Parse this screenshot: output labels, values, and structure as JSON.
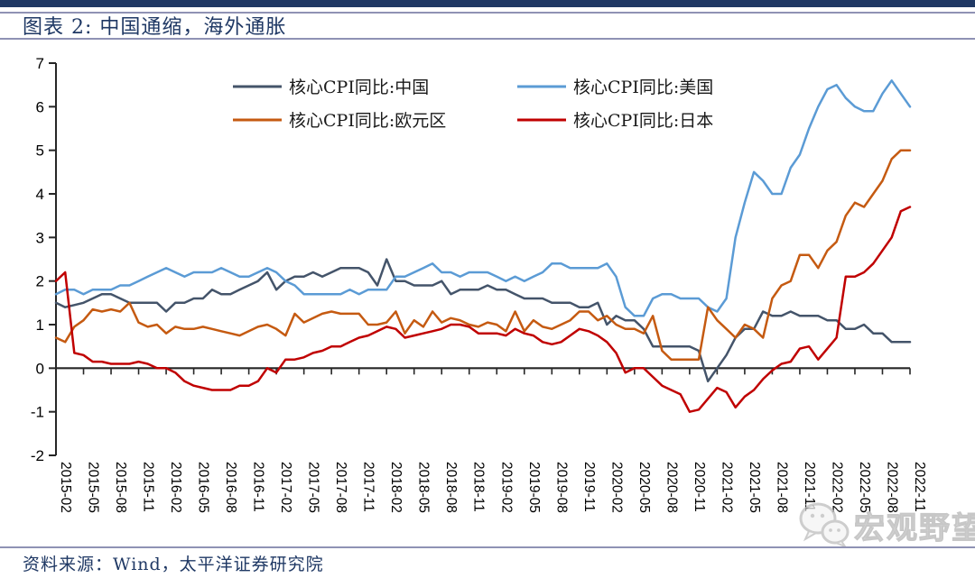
{
  "header": {
    "title": "图表 2:  中国通缩，海外通胀"
  },
  "footer": {
    "source": "资料来源：Wind，太平洋证券研究院"
  },
  "watermark": {
    "text": "宏观野望",
    "icon": "wechat-logo-icon"
  },
  "colors": {
    "accent_bar": "#203864",
    "rule_line": "#8f92b4",
    "axis": "#262626",
    "title_text": "#1F3864"
  },
  "chart_data": {
    "type": "line",
    "title": "中国通缩，海外通胀",
    "frequency": "monthly",
    "x_start": "2015-02",
    "x_end": "2022-11",
    "ylim": [
      -2,
      7
    ],
    "y_ticks": [
      7,
      6,
      5,
      4,
      3,
      2,
      1,
      0,
      -1,
      -2
    ],
    "grid": false,
    "legend_position": "top-inside-two-columns",
    "x_tick_labels": [
      "2015-02",
      "2015-05",
      "2015-08",
      "2015-11",
      "2016-02",
      "2016-05",
      "2016-08",
      "2016-11",
      "2017-02",
      "2017-05",
      "2017-08",
      "2017-11",
      "2018-02",
      "2018-05",
      "2018-08",
      "2018-11",
      "2019-02",
      "2019-05",
      "2019-08",
      "2019-11",
      "2020-02",
      "2020-05",
      "2020-08",
      "2020-11",
      "2021-02",
      "2021-05",
      "2021-08",
      "2021-11",
      "2022-02",
      "2022-05",
      "2022-08",
      "2022-11"
    ],
    "series": [
      {
        "key": "china",
        "name": "核心CPI同比:中国",
        "color": "#44546A",
        "values": [
          1.5,
          1.4,
          1.45,
          1.5,
          1.6,
          1.7,
          1.7,
          1.6,
          1.5,
          1.5,
          1.5,
          1.5,
          1.3,
          1.5,
          1.5,
          1.6,
          1.6,
          1.8,
          1.7,
          1.7,
          1.8,
          1.9,
          2.0,
          2.2,
          1.8,
          2.0,
          2.1,
          2.1,
          2.2,
          2.1,
          2.2,
          2.3,
          2.3,
          2.3,
          2.2,
          1.9,
          2.5,
          2.0,
          2.0,
          1.9,
          1.9,
          1.9,
          2.0,
          1.7,
          1.8,
          1.8,
          1.8,
          1.9,
          1.8,
          1.8,
          1.7,
          1.6,
          1.6,
          1.6,
          1.5,
          1.5,
          1.5,
          1.4,
          1.4,
          1.5,
          1.0,
          1.2,
          1.1,
          1.1,
          0.9,
          0.5,
          0.5,
          0.5,
          0.5,
          0.5,
          0.4,
          -0.3,
          0.0,
          0.3,
          0.7,
          0.9,
          0.9,
          1.3,
          1.2,
          1.2,
          1.3,
          1.2,
          1.2,
          1.2,
          1.1,
          1.1,
          0.9,
          0.9,
          1.0,
          0.8,
          0.8,
          0.6,
          0.6,
          0.6
        ]
      },
      {
        "key": "us",
        "name": "核心CPI同比:美国",
        "color": "#5B9BD5",
        "values": [
          1.7,
          1.8,
          1.8,
          1.7,
          1.8,
          1.8,
          1.8,
          1.9,
          1.9,
          2.0,
          2.1,
          2.2,
          2.3,
          2.2,
          2.1,
          2.2,
          2.2,
          2.2,
          2.3,
          2.2,
          2.1,
          2.1,
          2.2,
          2.3,
          2.2,
          2.0,
          1.9,
          1.7,
          1.7,
          1.7,
          1.7,
          1.7,
          1.8,
          1.7,
          1.8,
          1.8,
          1.8,
          2.1,
          2.1,
          2.2,
          2.3,
          2.4,
          2.2,
          2.2,
          2.1,
          2.2,
          2.2,
          2.2,
          2.1,
          2.0,
          2.1,
          2.0,
          2.1,
          2.2,
          2.4,
          2.4,
          2.3,
          2.3,
          2.3,
          2.3,
          2.4,
          2.1,
          1.4,
          1.2,
          1.2,
          1.6,
          1.7,
          1.7,
          1.6,
          1.6,
          1.6,
          1.4,
          1.3,
          1.6,
          3.0,
          3.8,
          4.5,
          4.3,
          4.0,
          4.0,
          4.6,
          4.9,
          5.5,
          6.0,
          6.4,
          6.5,
          6.2,
          6.0,
          5.9,
          5.9,
          6.3,
          6.6,
          6.3,
          6.0
        ]
      },
      {
        "key": "eurozone",
        "name": "核心CPI同比:欧元区",
        "color": "#C55A11",
        "values": [
          0.7,
          0.6,
          0.95,
          1.1,
          1.35,
          1.3,
          1.35,
          1.3,
          1.5,
          1.05,
          0.95,
          1.0,
          0.8,
          0.95,
          0.9,
          0.9,
          0.95,
          0.9,
          0.85,
          0.8,
          0.75,
          0.85,
          0.95,
          1.0,
          0.9,
          0.75,
          1.25,
          1.05,
          1.15,
          1.25,
          1.3,
          1.25,
          1.25,
          1.25,
          1.0,
          1.0,
          1.05,
          1.3,
          0.8,
          1.1,
          0.95,
          1.3,
          1.05,
          1.15,
          1.1,
          1.0,
          0.95,
          1.05,
          1.0,
          0.85,
          1.3,
          0.85,
          1.1,
          0.95,
          0.9,
          1.0,
          1.1,
          1.3,
          1.3,
          1.1,
          1.2,
          1.0,
          0.9,
          0.9,
          0.8,
          1.2,
          0.4,
          0.2,
          0.2,
          0.2,
          0.2,
          1.4,
          1.1,
          0.9,
          0.7,
          1.0,
          0.9,
          0.7,
          1.6,
          1.9,
          2.0,
          2.6,
          2.6,
          2.3,
          2.7,
          2.9,
          3.5,
          3.8,
          3.7,
          4.0,
          4.3,
          4.8,
          5.0,
          5.0
        ]
      },
      {
        "key": "japan",
        "name": "核心CPI同比:日本",
        "color": "#C00000",
        "values": [
          2.0,
          2.2,
          0.35,
          0.3,
          0.15,
          0.15,
          0.1,
          0.1,
          0.1,
          0.15,
          0.1,
          0.0,
          0.0,
          -0.1,
          -0.3,
          -0.4,
          -0.45,
          -0.5,
          -0.5,
          -0.5,
          -0.4,
          -0.4,
          -0.3,
          0.0,
          -0.1,
          0.2,
          0.2,
          0.25,
          0.35,
          0.4,
          0.5,
          0.5,
          0.6,
          0.7,
          0.75,
          0.85,
          0.95,
          0.9,
          0.7,
          0.75,
          0.8,
          0.85,
          0.9,
          1.0,
          1.0,
          0.95,
          0.8,
          0.8,
          0.8,
          0.75,
          0.9,
          0.8,
          0.75,
          0.6,
          0.55,
          0.6,
          0.75,
          0.9,
          0.85,
          0.75,
          0.6,
          0.35,
          -0.1,
          0.0,
          0.0,
          -0.2,
          -0.4,
          -0.5,
          -0.6,
          -1.0,
          -0.95,
          -0.7,
          -0.45,
          -0.55,
          -0.9,
          -0.65,
          -0.5,
          -0.25,
          -0.05,
          0.1,
          0.15,
          0.45,
          0.5,
          0.2,
          0.45,
          0.7,
          2.1,
          2.1,
          2.2,
          2.4,
          2.7,
          3.0,
          3.6,
          3.7
        ]
      }
    ]
  }
}
